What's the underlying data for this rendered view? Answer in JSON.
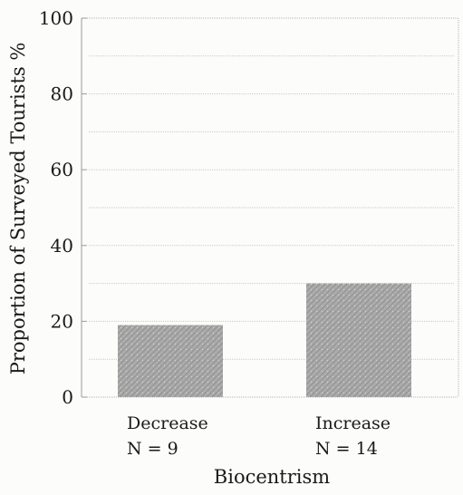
{
  "chart_data": {
    "type": "bar",
    "categories": [
      "Decrease",
      "Increase"
    ],
    "category_counts": [
      "N = 9",
      "N = 14"
    ],
    "values": [
      19,
      30
    ],
    "xlabel": "Biocentrism",
    "ylabel": "Proportion of Surveyed Tourists %",
    "ylim": [
      0,
      100
    ],
    "yticks": [
      0,
      20,
      40,
      60,
      80,
      100
    ],
    "grid": true,
    "bar_color": "#a8a8a8"
  }
}
